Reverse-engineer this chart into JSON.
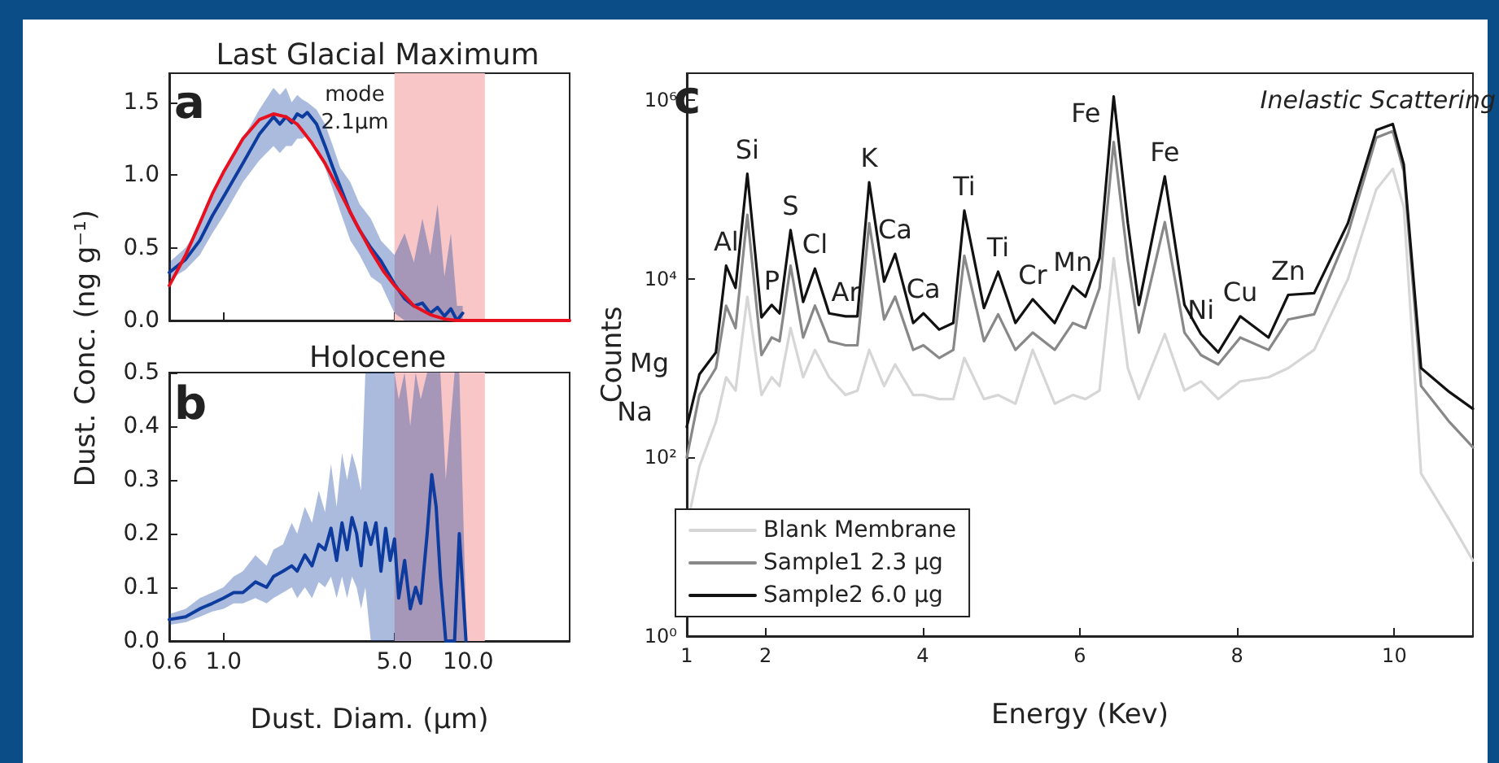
{
  "chart_data": [
    {
      "type": "line",
      "title": "Last Glacial Maximum",
      "ylabel": "Dust. Conc. (ng g⁻¹)",
      "log": "x",
      "tick_labels": "y",
      "xlim": [
        0.6,
        26
      ],
      "xticks": [
        0.6,
        1,
        5,
        10
      ],
      "ylim": [
        0,
        1.7
      ],
      "yticks": [
        {
          "value": 0,
          "label": "0.0"
        },
        0.5,
        {
          "value": 1,
          "label": "1.0"
        },
        1.5
      ],
      "bands": [
        {
          "axis": "x",
          "from": 5.0,
          "to": 11.7,
          "color": "#f8c6c6"
        }
      ],
      "annotations": [
        "a",
        "mode\n2.1µm"
      ],
      "series": [
        {
          "color": "#0d3b9e",
          "x": [
            0.6,
            0.7,
            0.8,
            0.9,
            1.0,
            1.2,
            1.4,
            1.6,
            1.7,
            1.8,
            1.9,
            2.0,
            2.1,
            2.2,
            2.4,
            2.6,
            2.8,
            3.0,
            3.3,
            3.6,
            4.0,
            4.4,
            5.0,
            5.5,
            6.0,
            6.5,
            7.0,
            7.5,
            8.0,
            8.5,
            9.0,
            9.5
          ],
          "values": [
            0.33,
            0.42,
            0.55,
            0.72,
            0.85,
            1.08,
            1.28,
            1.4,
            1.35,
            1.4,
            1.36,
            1.42,
            1.4,
            1.43,
            1.35,
            1.2,
            1.05,
            0.92,
            0.74,
            0.62,
            0.5,
            0.41,
            0.25,
            0.15,
            0.1,
            0.12,
            0.05,
            0.09,
            0.03,
            0.08,
            0.0,
            0.05
          ],
          "upper": [
            0.4,
            0.5,
            0.65,
            0.85,
            1.0,
            1.25,
            1.45,
            1.6,
            1.55,
            1.6,
            1.5,
            1.55,
            1.52,
            1.5,
            1.45,
            1.35,
            1.2,
            1.05,
            0.95,
            0.8,
            0.7,
            0.55,
            0.45,
            0.6,
            0.4,
            0.7,
            0.45,
            0.8,
            0.3,
            0.6,
            0.1,
            0.1
          ],
          "lower": [
            0.28,
            0.35,
            0.45,
            0.6,
            0.72,
            0.95,
            1.1,
            1.2,
            1.15,
            1.2,
            1.2,
            1.25,
            1.25,
            1.28,
            1.2,
            1.05,
            0.9,
            0.75,
            0.55,
            0.45,
            0.3,
            0.25,
            0.05,
            0.0,
            0.0,
            0.0,
            0.0,
            0.0,
            0.0,
            0.0,
            0.0,
            0.0
          ]
        },
        {
          "color": "#e8101e",
          "x": [
            0.6,
            0.7,
            0.8,
            0.9,
            1.0,
            1.2,
            1.4,
            1.6,
            1.8,
            2.0,
            2.3,
            2.6,
            3.0,
            3.5,
            4.0,
            4.5,
            5.0,
            5.5,
            6.0,
            7.0,
            8.0,
            9.0,
            12,
            26
          ],
          "values": [
            0.24,
            0.45,
            0.67,
            0.87,
            1.02,
            1.25,
            1.38,
            1.42,
            1.4,
            1.35,
            1.22,
            1.08,
            0.88,
            0.66,
            0.48,
            0.34,
            0.24,
            0.17,
            0.1,
            0.04,
            0.01,
            0.0,
            0.0,
            0.0
          ]
        }
      ]
    },
    {
      "type": "line",
      "title": "Holocene",
      "xlabel": "Dust. Diam. (µm)",
      "log": "x",
      "xlim": [
        0.6,
        26
      ],
      "xticks": [
        {
          "value": 0.6,
          "label": "0.6"
        },
        {
          "value": 1,
          "label": "1.0"
        },
        {
          "value": 5,
          "label": "5.0"
        },
        {
          "value": 10,
          "label": "10.0"
        }
      ],
      "ylim": [
        0,
        0.5
      ],
      "yticks": [
        {
          "value": 0,
          "label": "0.0"
        },
        0.1,
        0.2,
        0.3,
        0.4,
        0.5
      ],
      "bands": [
        {
          "axis": "x",
          "from": 5.0,
          "to": 11.7,
          "color": "#f8c6c6"
        }
      ],
      "annotations": [
        "b"
      ],
      "series": [
        {
          "color": "#0d3b9e",
          "x": [
            0.6,
            0.7,
            0.8,
            0.9,
            1.0,
            1.1,
            1.2,
            1.35,
            1.5,
            1.6,
            1.75,
            1.9,
            2.0,
            2.15,
            2.3,
            2.45,
            2.6,
            2.75,
            2.9,
            3.05,
            3.2,
            3.35,
            3.5,
            3.65,
            3.8,
            4.0,
            4.2,
            4.4,
            4.6,
            4.8,
            5.0,
            5.2,
            5.5,
            5.8,
            6.1,
            6.4,
            6.8,
            7.1,
            7.4,
            7.7,
            8.1,
            8.8,
            9.2,
            9.8
          ],
          "values": [
            0.04,
            0.045,
            0.06,
            0.07,
            0.08,
            0.09,
            0.09,
            0.11,
            0.1,
            0.12,
            0.13,
            0.14,
            0.13,
            0.16,
            0.14,
            0.18,
            0.17,
            0.21,
            0.15,
            0.22,
            0.17,
            0.23,
            0.2,
            0.14,
            0.22,
            0.18,
            0.22,
            0.13,
            0.21,
            0.15,
            0.19,
            0.08,
            0.15,
            0.06,
            0.1,
            0.07,
            0.2,
            0.31,
            0.25,
            0.12,
            0.0,
            0.0,
            0.2,
            0.0
          ],
          "upper": [
            0.05,
            0.06,
            0.08,
            0.09,
            0.1,
            0.12,
            0.13,
            0.16,
            0.14,
            0.17,
            0.18,
            0.22,
            0.2,
            0.25,
            0.22,
            0.28,
            0.24,
            0.33,
            0.25,
            0.35,
            0.3,
            0.35,
            0.32,
            0.28,
            0.5,
            0.5,
            0.5,
            0.5,
            0.5,
            0.5,
            0.5,
            0.45,
            0.5,
            0.4,
            0.5,
            0.45,
            0.5,
            0.5,
            0.5,
            0.5,
            0.3,
            0.5,
            0.5,
            0.05
          ],
          "lower": [
            0.03,
            0.035,
            0.045,
            0.055,
            0.06,
            0.07,
            0.07,
            0.08,
            0.07,
            0.08,
            0.09,
            0.1,
            0.08,
            0.1,
            0.08,
            0.11,
            0.1,
            0.12,
            0.08,
            0.12,
            0.08,
            0.12,
            0.1,
            0.06,
            0.1,
            0.0,
            0.0,
            0.0,
            0.0,
            0.0,
            0.0,
            0.0,
            0.0,
            0.0,
            0.0,
            0.0,
            0.0,
            0.0,
            0.0,
            0.0,
            0.0,
            0.0,
            0.0,
            0.0
          ]
        }
      ]
    },
    {
      "type": "line",
      "xlabel": "Energy (Kev)",
      "ylabel": "Counts",
      "log": "y",
      "legend": "bottom left",
      "xlim": [
        1,
        11
      ],
      "xticks": [
        1,
        2,
        4,
        6,
        8,
        10
      ],
      "ylim": [
        1,
        2000000
      ],
      "yticks": [
        {
          "value": 1,
          "label": "10⁰"
        },
        {
          "value": 100,
          "label": "10²"
        },
        {
          "value": 10000,
          "label": "10⁴"
        },
        {
          "value": 1000000,
          "label": "10⁶"
        }
      ],
      "x": [
        1.0,
        1.16,
        1.37,
        1.5,
        1.62,
        1.77,
        1.95,
        2.08,
        2.18,
        2.32,
        2.48,
        2.63,
        2.81,
        3.02,
        3.17,
        3.32,
        3.51,
        3.65,
        3.88,
        4.01,
        4.21,
        4.39,
        4.53,
        4.78,
        4.96,
        5.18,
        5.4,
        5.68,
        5.91,
        6.07,
        6.25,
        6.43,
        6.61,
        6.75,
        7.08,
        7.33,
        7.54,
        7.76,
        8.04,
        8.4,
        8.65,
        8.98,
        9.41,
        9.77,
        9.98,
        10.12,
        10.34,
        10.7,
        11.0
      ],
      "annotations": [
        "c",
        "Inelastic Scattering",
        "Mg",
        "Na",
        {
          "text": "Al",
          "x": 1.5,
          "y": 14000
        },
        {
          "text": "Si",
          "x": 1.77,
          "y": 150000
        },
        {
          "text": "P",
          "x": 2.08,
          "y": 5100
        },
        {
          "text": "S",
          "x": 2.32,
          "y": 35000
        },
        {
          "text": "Cl",
          "x": 2.63,
          "y": 13000
        },
        {
          "text": "Ar",
          "x": 3.02,
          "y": 3800
        },
        {
          "text": "K",
          "x": 3.32,
          "y": 120000
        },
        {
          "text": "Ca",
          "x": 3.65,
          "y": 19000
        },
        {
          "text": "Ca",
          "x": 4.01,
          "y": 4100
        },
        {
          "text": "Ti",
          "x": 4.53,
          "y": 58000
        },
        {
          "text": "Ti",
          "x": 4.96,
          "y": 12000
        },
        {
          "text": "Cr",
          "x": 5.4,
          "y": 5900
        },
        {
          "text": "Mn",
          "x": 5.91,
          "y": 8300
        },
        {
          "text": "Fe",
          "x": 6.43,
          "y": 1100000
        },
        {
          "text": "Fe",
          "x": 7.08,
          "y": 140000
        },
        {
          "text": "Ni",
          "x": 7.54,
          "y": 2400
        },
        {
          "text": "Cu",
          "x": 8.04,
          "y": 3800
        },
        {
          "text": "Zn",
          "x": 8.65,
          "y": 6600
        }
      ],
      "series": [
        {
          "name": "Blank Membrane",
          "color": "#d6d6d6",
          "values": [
            17,
            79,
            250,
            790,
            560,
            6300,
            500,
            790,
            630,
            2800,
            790,
            1600,
            790,
            500,
            560,
            1600,
            630,
            1100,
            500,
            500,
            450,
            450,
            1300,
            450,
            500,
            400,
            1600,
            400,
            500,
            450,
            560,
            17000,
            1000,
            450,
            2400,
            560,
            710,
            450,
            710,
            790,
            1000,
            1600,
            10000,
            100000,
            170000,
            63000,
            66,
            20,
            7
          ]
        },
        {
          "name": "Sample1 2.3 µg",
          "color": "#888888",
          "values": [
            100,
            500,
            1000,
            5000,
            2800,
            52000,
            1400,
            2200,
            2000,
            14000,
            2200,
            5000,
            2000,
            1800,
            1800,
            42000,
            3500,
            6300,
            1600,
            1800,
            1300,
            1600,
            18000,
            2000,
            4000,
            1600,
            2500,
            1600,
            3200,
            2800,
            7900,
            340000,
            16000,
            2500,
            43000,
            2500,
            1400,
            1100,
            2200,
            1600,
            3500,
            4000,
            32000,
            380000,
            450000,
            160000,
            630,
            250,
            130
          ]
        },
        {
          "name": "Sample2 6.0 µg",
          "color": "#111111",
          "values": [
            220,
            850,
            1500,
            14000,
            7900,
            150000,
            3700,
            5100,
            4100,
            35000,
            5500,
            13000,
            4100,
            3800,
            3800,
            120000,
            9300,
            19000,
            3200,
            4100,
            2700,
            3200,
            58000,
            4700,
            12000,
            3200,
            5900,
            3200,
            8300,
            6300,
            17000,
            1100000,
            42000,
            5100,
            140000,
            5100,
            2400,
            1500,
            3800,
            2200,
            6600,
            6900,
            42000,
            460000,
            540000,
            190000,
            1000,
            540,
            350
          ]
        }
      ]
    }
  ]
}
